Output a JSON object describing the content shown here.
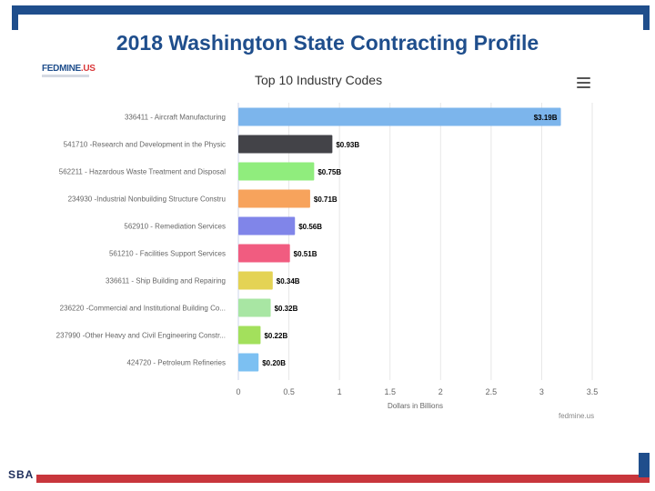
{
  "slide": {
    "title": "2018 Washington State Contracting Profile"
  },
  "branding": {
    "fedmine_logo_main": "FEDMINE",
    "fedmine_logo_suffix": ".US",
    "sba_logo": "SBA",
    "credit": "fedmine.us"
  },
  "colors": {
    "brand_blue": "#1f4e8c",
    "brand_red": "#c8363c"
  },
  "chart_data": {
    "type": "bar",
    "orientation": "horizontal",
    "title": "Top 10 Industry Codes",
    "xlabel": "Dollars in Billions",
    "xlim": [
      0,
      3.5
    ],
    "xticks": [
      "0",
      "0.5",
      "1",
      "1.5",
      "2",
      "2.5",
      "3",
      "3.5"
    ],
    "grid": true,
    "categories": [
      "336411 - Aircraft Manufacturing",
      "541710 -Research and Development in the Physic",
      "562211 - Hazardous Waste Treatment and Disposal",
      "234930 -Industrial Nonbuilding Structure Constru",
      "562910 - Remediation Services",
      "561210 - Facilities Support Services",
      "336611 - Ship Building and Repairing",
      "236220 -Commercial and Institutional Building Co...",
      "237990 -Other Heavy and Civil Engineering Constr...",
      "424720 - Petroleum Refineries"
    ],
    "values": [
      3.19,
      0.93,
      0.75,
      0.71,
      0.56,
      0.51,
      0.34,
      0.32,
      0.22,
      0.2
    ],
    "data_labels": [
      "$3.19B",
      "$0.93B",
      "$0.75B",
      "$0.71B",
      "$0.56B",
      "$0.51B",
      "$0.34B",
      "$0.32B",
      "$0.22B",
      "$0.20B"
    ],
    "bar_colors": [
      "#7cb5ec",
      "#434348",
      "#90ed7d",
      "#f7a35c",
      "#8085e9",
      "#f15c80",
      "#e4d354",
      "#a8e6a3",
      "#a3e05c",
      "#7cc0f2"
    ]
  }
}
